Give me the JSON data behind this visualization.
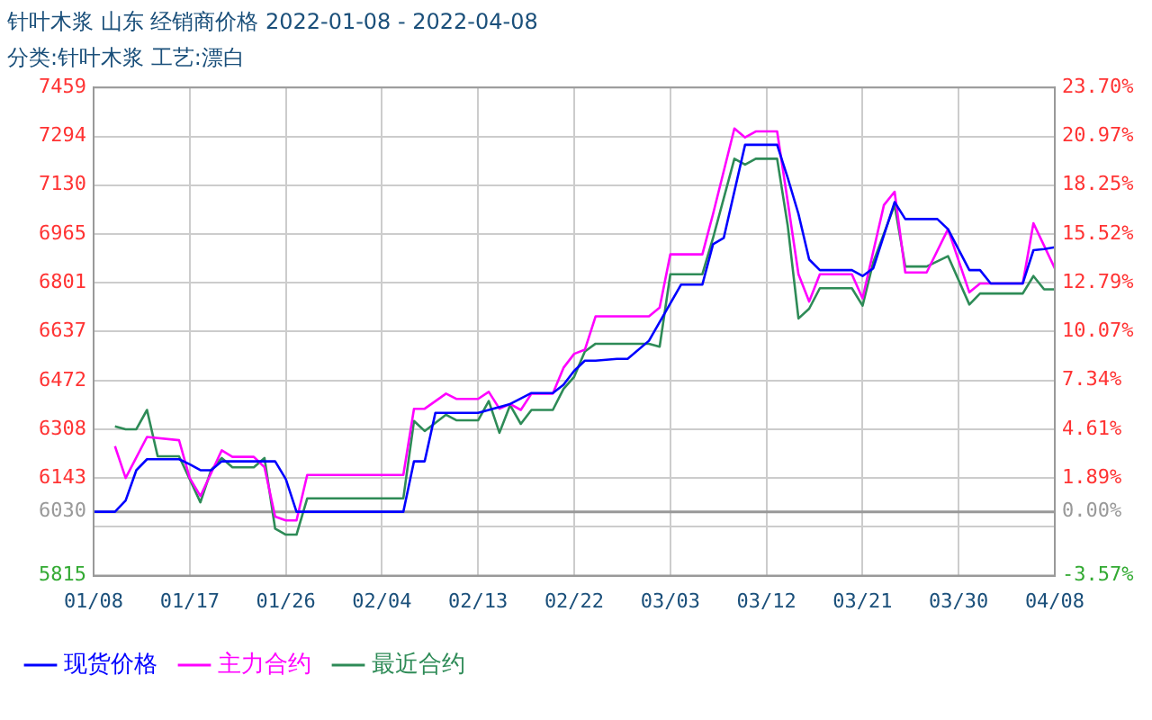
{
  "chart_data": {
    "type": "line",
    "title": "针叶木浆 山东 经销商价格 2022-01-08 - 2022-04-08",
    "subtitle": "分类:针叶木浆 工艺:漂白",
    "series": [
      {
        "name": "现货价格",
        "color": "#0000ff",
        "x": [
          "2022-01-08",
          "2022-01-10",
          "2022-01-11",
          "2022-01-12",
          "2022-01-13",
          "2022-01-16",
          "2022-01-17",
          "2022-01-18",
          "2022-01-19",
          "2022-01-20",
          "2022-01-25",
          "2022-01-26",
          "2022-01-27",
          "2022-02-06",
          "2022-02-07",
          "2022-02-08",
          "2022-02-09",
          "2022-02-13",
          "2022-02-14",
          "2022-02-16",
          "2022-02-18",
          "2022-02-20",
          "2022-02-21",
          "2022-02-22",
          "2022-02-23",
          "2022-02-24",
          "2022-02-26",
          "2022-02-27",
          "2022-03-01",
          "2022-03-04",
          "2022-03-06",
          "2022-03-07",
          "2022-03-08",
          "2022-03-10",
          "2022-03-13",
          "2022-03-14",
          "2022-03-15",
          "2022-03-16",
          "2022-03-17",
          "2022-03-20",
          "2022-03-21",
          "2022-03-22",
          "2022-03-24",
          "2022-03-25",
          "2022-03-28",
          "2022-03-29",
          "2022-03-31",
          "2022-04-01",
          "2022-04-02",
          "2022-04-05",
          "2022-04-06",
          "2022-04-07",
          "2022-04-08"
        ],
        "values": [
          6030,
          6030,
          6068,
          6170,
          6207,
          6207,
          6190,
          6170,
          6170,
          6200,
          6200,
          6140,
          6030,
          6030,
          6200,
          6200,
          6363,
          6363,
          6373,
          6393,
          6430,
          6430,
          6458,
          6505,
          6539,
          6539,
          6545,
          6545,
          6606,
          6795,
          6795,
          6931,
          6952,
          7266,
          7266,
          7154,
          7033,
          6880,
          6844,
          6844,
          6824,
          6850,
          7073,
          7016,
          7016,
          6982,
          6844,
          6844,
          6799,
          6799,
          6911,
          6915,
          6921
        ]
      },
      {
        "name": "主力合约",
        "color": "#ff00ff",
        "x": [
          "2022-01-10",
          "2022-01-11",
          "2022-01-13",
          "2022-01-16",
          "2022-01-17",
          "2022-01-18",
          "2022-01-20",
          "2022-01-21",
          "2022-01-23",
          "2022-01-24",
          "2022-01-25",
          "2022-01-26",
          "2022-01-27",
          "2022-01-28",
          "2022-02-06",
          "2022-02-07",
          "2022-02-08",
          "2022-02-10",
          "2022-02-11",
          "2022-02-13",
          "2022-02-14",
          "2022-02-15",
          "2022-02-16",
          "2022-02-17",
          "2022-02-18",
          "2022-02-20",
          "2022-02-21",
          "2022-02-22",
          "2022-02-23",
          "2022-02-24",
          "2022-03-01",
          "2022-03-02",
          "2022-03-03",
          "2022-03-06",
          "2022-03-07",
          "2022-03-09",
          "2022-03-10",
          "2022-03-11",
          "2022-03-13",
          "2022-03-14",
          "2022-03-15",
          "2022-03-16",
          "2022-03-17",
          "2022-03-20",
          "2022-03-21",
          "2022-03-23",
          "2022-03-24",
          "2022-03-25",
          "2022-03-27",
          "2022-03-29",
          "2022-03-31",
          "2022-04-01",
          "2022-04-05",
          "2022-04-06",
          "2022-04-08"
        ],
        "values": [
          6251,
          6144,
          6282,
          6271,
          6144,
          6083,
          6237,
          6215,
          6215,
          6180,
          6014,
          6001,
          6001,
          6154,
          6154,
          6377,
          6377,
          6428,
          6410,
          6410,
          6434,
          6377,
          6393,
          6373,
          6428,
          6428,
          6515,
          6562,
          6576,
          6688,
          6688,
          6718,
          6897,
          6897,
          7033,
          7321,
          7291,
          7311,
          7311,
          7073,
          6830,
          6738,
          6830,
          6830,
          6749,
          7063,
          7108,
          6836,
          6836,
          6982,
          6769,
          6799,
          6799,
          7002,
          6850
        ]
      },
      {
        "name": "最近合约",
        "color": "#2e8b57",
        "x": [
          "2022-01-10",
          "2022-01-11",
          "2022-01-12",
          "2022-01-13",
          "2022-01-14",
          "2022-01-16",
          "2022-01-17",
          "2022-01-18",
          "2022-01-19",
          "2022-01-20",
          "2022-01-21",
          "2022-01-23",
          "2022-01-24",
          "2022-01-25",
          "2022-01-26",
          "2022-01-27",
          "2022-01-28",
          "2022-02-06",
          "2022-02-07",
          "2022-02-08",
          "2022-02-10",
          "2022-02-11",
          "2022-02-13",
          "2022-02-14",
          "2022-02-15",
          "2022-02-16",
          "2022-02-17",
          "2022-02-18",
          "2022-02-20",
          "2022-02-21",
          "2022-02-22",
          "2022-02-23",
          "2022-02-24",
          "2022-03-01",
          "2022-03-02",
          "2022-03-03",
          "2022-03-06",
          "2022-03-07",
          "2022-03-09",
          "2022-03-10",
          "2022-03-11",
          "2022-03-13",
          "2022-03-14",
          "2022-03-15",
          "2022-03-16",
          "2022-03-17",
          "2022-03-20",
          "2022-03-21",
          "2022-03-22",
          "2022-03-24",
          "2022-03-25",
          "2022-03-27",
          "2022-03-29",
          "2022-03-31",
          "2022-04-01",
          "2022-04-05",
          "2022-04-06",
          "2022-04-07",
          "2022-04-08"
        ],
        "values": [
          6318,
          6308,
          6308,
          6373,
          6217,
          6217,
          6140,
          6062,
          6170,
          6211,
          6180,
          6180,
          6211,
          5973,
          5953,
          5953,
          6075,
          6075,
          6336,
          6302,
          6357,
          6338,
          6338,
          6403,
          6296,
          6389,
          6326,
          6373,
          6373,
          6444,
          6485,
          6570,
          6596,
          6596,
          6586,
          6830,
          6830,
          6952,
          7219,
          7199,
          7219,
          7219,
          6992,
          6681,
          6714,
          6783,
          6783,
          6724,
          6870,
          7063,
          6856,
          6856,
          6891,
          6728,
          6765,
          6765,
          6824,
          6779,
          6779
        ]
      }
    ],
    "xlim": [
      "2022-01-08",
      "2022-04-08"
    ],
    "xticks": [
      {
        "value": "2022-01-08",
        "label": "01/08"
      },
      {
        "value": "2022-01-17",
        "label": "01/17"
      },
      {
        "value": "2022-01-26",
        "label": "01/26"
      },
      {
        "value": "2022-02-04",
        "label": "02/04"
      },
      {
        "value": "2022-02-13",
        "label": "02/13"
      },
      {
        "value": "2022-02-22",
        "label": "02/22"
      },
      {
        "value": "2022-03-03",
        "label": "03/03"
      },
      {
        "value": "2022-03-12",
        "label": "03/12"
      },
      {
        "value": "2022-03-21",
        "label": "03/21"
      },
      {
        "value": "2022-03-30",
        "label": "03/30"
      },
      {
        "value": "2022-04-08",
        "label": "04/08"
      }
    ],
    "ylim": [
      5815,
      7459
    ],
    "yticks": [
      5815,
      {
        "value": 5979,
        "label": null
      },
      6030,
      6143,
      6308,
      6472,
      6637,
      6801,
      6965,
      7130,
      7294,
      7459
    ],
    "y2lim": [
      -3.57,
      23.7
    ],
    "y2ticks": [
      {
        "value": -3.57,
        "label": "-3.57%"
      },
      {
        "value": -0.85,
        "label": null
      },
      {
        "value": 0,
        "label": "0.00%"
      },
      {
        "value": 1.89,
        "label": "1.89%"
      },
      {
        "value": 4.61,
        "label": "4.61%"
      },
      {
        "value": 7.34,
        "label": "7.34%"
      },
      {
        "value": 10.07,
        "label": "10.07%"
      },
      {
        "value": 12.79,
        "label": "12.79%"
      },
      {
        "value": 15.52,
        "label": "15.52%"
      },
      {
        "value": 18.25,
        "label": "18.25%"
      },
      {
        "value": 20.97,
        "label": "20.97%"
      },
      {
        "value": 23.7,
        "label": "23.70%"
      }
    ],
    "ref_lines": [
      {
        "axis": "y",
        "value": 6030,
        "color": "#999999"
      }
    ],
    "grid": true,
    "legend": "bottom"
  }
}
